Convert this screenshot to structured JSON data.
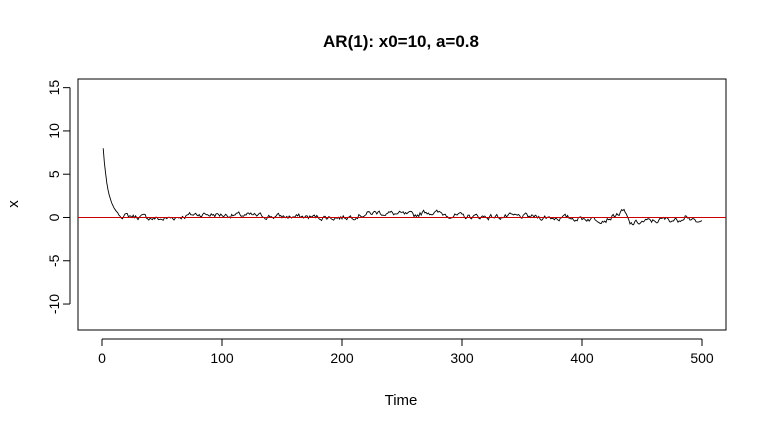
{
  "chart_data": {
    "type": "line",
    "title": "AR(1): x0=10, a=0.8",
    "xlabel": "Time",
    "ylabel": "x",
    "xlim": [
      -20,
      520
    ],
    "ylim": [
      -13,
      16
    ],
    "xticks": [
      0,
      100,
      200,
      300,
      400,
      500
    ],
    "yticks": [
      -10,
      -5,
      0,
      5,
      10,
      15
    ],
    "xtick_labels": [
      "0",
      "100",
      "200",
      "300",
      "400",
      "500"
    ],
    "ytick_labels": [
      "-10",
      "-5",
      "0",
      "5",
      "10",
      "15"
    ],
    "grid": false,
    "legend": "none",
    "reference_line": {
      "y": 0,
      "color": "#cc0000"
    },
    "series": [
      {
        "color": "#000000",
        "x_start": 1,
        "x_end": 500,
        "initial_value": 8,
        "x_samples": [
          1,
          2,
          3,
          4,
          5,
          6,
          8,
          10,
          12,
          15,
          20,
          30,
          50,
          80,
          100,
          150,
          200,
          230,
          260,
          270,
          300,
          350,
          400,
          420,
          435,
          440,
          450,
          460,
          470,
          480,
          487,
          493,
          497,
          500
        ],
        "y_samples": [
          8.0,
          6.3,
          5.1,
          4.0,
          3.2,
          2.6,
          1.7,
          1.1,
          0.7,
          0.3,
          0.2,
          0.1,
          -0.2,
          0.4,
          0.3,
          0.1,
          0.0,
          0.6,
          0.2,
          0.7,
          0.1,
          0.1,
          -0.1,
          -0.2,
          0.7,
          -0.8,
          -0.5,
          -0.4,
          -0.2,
          -0.3,
          0.4,
          -0.5,
          -0.7,
          -0.6
        ]
      }
    ]
  }
}
